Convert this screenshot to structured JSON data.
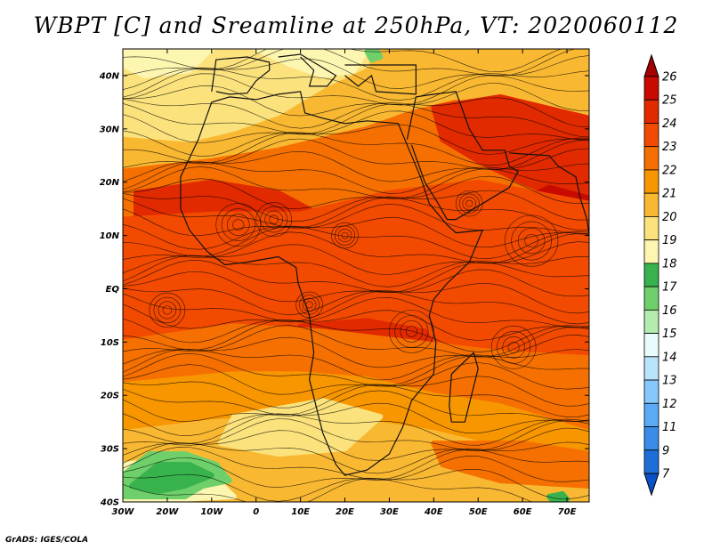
{
  "title": "WBPT [C] and Sreamline at 250hPa, VT: 2020060112",
  "credit": "GrADS: IGES/COLA",
  "map": {
    "lon_range": [
      -30,
      75
    ],
    "lat_range": [
      -40,
      45
    ],
    "lat_ticks": [
      {
        "value": 40,
        "label": "40N"
      },
      {
        "value": 30,
        "label": "30N"
      },
      {
        "value": 20,
        "label": "20N"
      },
      {
        "value": 10,
        "label": "10N"
      },
      {
        "value": 0,
        "label": "EQ"
      },
      {
        "value": -10,
        "label": "10S"
      },
      {
        "value": -20,
        "label": "20S"
      },
      {
        "value": -30,
        "label": "30S"
      },
      {
        "value": -40,
        "label": "40S"
      }
    ],
    "lon_ticks": [
      {
        "value": -30,
        "label": "30W"
      },
      {
        "value": -20,
        "label": "20W"
      },
      {
        "value": -10,
        "label": "10W"
      },
      {
        "value": 0,
        "label": "0"
      },
      {
        "value": 10,
        "label": "10E"
      },
      {
        "value": 20,
        "label": "20E"
      },
      {
        "value": 30,
        "label": "30E"
      },
      {
        "value": 40,
        "label": "40E"
      },
      {
        "value": 50,
        "label": "50E"
      },
      {
        "value": 60,
        "label": "60E"
      },
      {
        "value": 70,
        "label": "70E"
      }
    ]
  },
  "colorbar": {
    "labels": [
      "26",
      "25",
      "24",
      "23",
      "22",
      "21",
      "20",
      "19",
      "18",
      "17",
      "16",
      "15",
      "14",
      "13",
      "12",
      "11",
      "9",
      "7"
    ],
    "colors": [
      "#a50000",
      "#c80a00",
      "#e12a00",
      "#f24a00",
      "#f57000",
      "#f89600",
      "#f9b832",
      "#fbe27c",
      "#fdf6b0",
      "#37b24d",
      "#6fcf6a",
      "#b4ecb0",
      "#e8fcfc",
      "#b8e4fc",
      "#86c8fc",
      "#5aaaf5",
      "#3a8ce8",
      "#1e6ed9",
      "#0a50c8"
    ]
  }
}
